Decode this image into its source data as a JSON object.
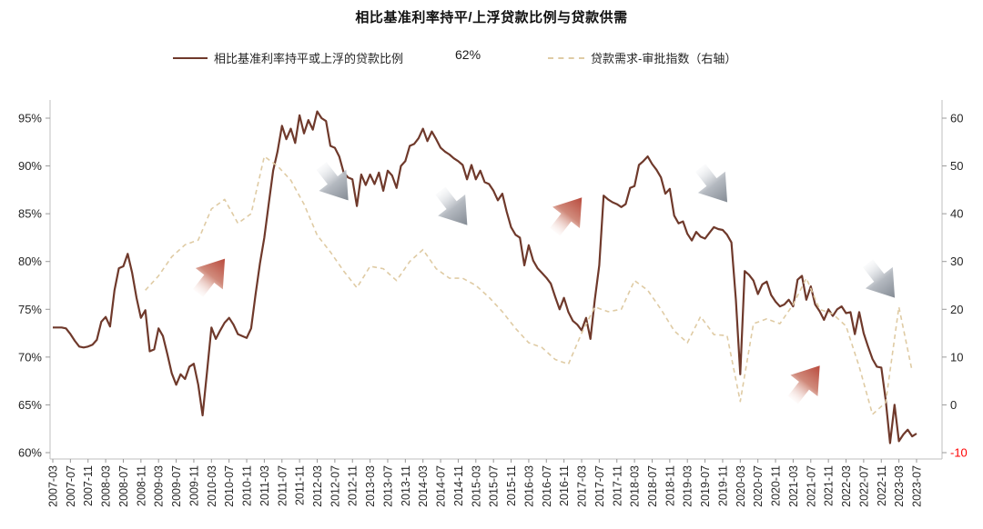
{
  "title": "相比基准利率持平/上浮贷款比例与贷款供需",
  "legend": {
    "series1_label": "相比基准利率持平或上浮的贷款比例",
    "latest_value_label": "62%",
    "series2_label": "贷款需求-审批指数（右轴）"
  },
  "colors": {
    "solid_line": "#6F392B",
    "dashed_line": "#DFCBA4",
    "axis_line": "#BFBFBF",
    "tick_mark": "#999999",
    "axis_text": "#262626",
    "negative_tick_text": "#FF0000",
    "arrow_red": "#B94A3D",
    "arrow_gray": "#848B94"
  },
  "chart_data": {
    "type": "line",
    "title": "相比基准利率持平/上浮贷款比例与贷款供需",
    "grid": false,
    "legend_position": "top",
    "left_axis": {
      "unit": "%",
      "min": 60,
      "max": 95,
      "tick_labels": [
        "60%",
        "65%",
        "70%",
        "75%",
        "80%",
        "85%",
        "90%",
        "95%"
      ]
    },
    "right_axis": {
      "min": -10,
      "max": 60,
      "tick_labels": [
        "-10",
        "0",
        "10",
        "20",
        "30",
        "40",
        "50",
        "60"
      ],
      "negative_label_red": "-10"
    },
    "x_axis": {
      "start": "2007-03",
      "end": "2023-07",
      "label_interval_months": 4,
      "tick_labels": [
        "2007-03",
        "2007-07",
        "2007-11",
        "2008-03",
        "2008-07",
        "2008-11",
        "2009-03",
        "2009-07",
        "2009-11",
        "2010-03",
        "2010-07",
        "2010-11",
        "2011-03",
        "2011-07",
        "2011-11",
        "2012-03",
        "2012-07",
        "2012-11",
        "2013-03",
        "2013-07",
        "2013-11",
        "2014-03",
        "2014-07",
        "2014-11",
        "2015-03",
        "2015-07",
        "2015-11",
        "2016-03",
        "2016-07",
        "2016-11",
        "2017-03",
        "2017-07",
        "2017-11",
        "2018-03",
        "2018-07",
        "2018-11",
        "2019-03",
        "2019-07",
        "2019-11",
        "2020-03",
        "2020-07",
        "2020-11",
        "2021-03",
        "2021-07",
        "2021-11",
        "2022-03",
        "2022-07",
        "2022-11",
        "2023-03",
        "2023-07"
      ]
    },
    "series": [
      {
        "name": "相比基准利率持平或上浮的贷款比例",
        "axis": "left",
        "style": "solid",
        "frequency": "monthly",
        "start": "2007-03",
        "step_months": 1,
        "unit": "%",
        "latest_label": "62%",
        "values": [
          73.1,
          73.1,
          73.1,
          73.0,
          72.4,
          71.7,
          71.1,
          71.0,
          71.1,
          71.3,
          71.8,
          73.7,
          74.2,
          73.2,
          77.0,
          79.3,
          79.5,
          80.8,
          78.8,
          76.2,
          74.1,
          74.9,
          70.6,
          70.8,
          73.0,
          72.2,
          70.3,
          68.3,
          67.1,
          68.2,
          67.7,
          69.0,
          69.3,
          67.1,
          63.9,
          68.5,
          73.1,
          71.9,
          72.8,
          73.6,
          74.1,
          73.4,
          72.4,
          72.2,
          72.0,
          73.0,
          76.5,
          79.8,
          82.5,
          86.0,
          89.5,
          91.5,
          94.2,
          92.8,
          93.9,
          92.4,
          95.3,
          93.4,
          94.8,
          93.8,
          95.7,
          95.0,
          94.7,
          92.1,
          91.9,
          91.0,
          89.3,
          88.8,
          88.6,
          85.8,
          89.1,
          88.0,
          89.1,
          88.1,
          89.3,
          87.4,
          89.5,
          89.0,
          87.7,
          90.0,
          90.5,
          92.1,
          92.3,
          92.9,
          93.9,
          92.6,
          93.6,
          92.8,
          91.9,
          91.5,
          91.2,
          90.8,
          90.5,
          90.1,
          88.6,
          90.1,
          88.6,
          89.5,
          88.3,
          88.1,
          87.4,
          86.4,
          87.1,
          85.2,
          83.6,
          82.8,
          82.5,
          79.6,
          81.7,
          80.1,
          79.3,
          78.8,
          78.3,
          77.7,
          76.3,
          75.0,
          76.2,
          74.7,
          73.8,
          73.4,
          72.8,
          74.1,
          71.9,
          76.0,
          79.6,
          86.9,
          86.5,
          86.2,
          86.0,
          85.7,
          86.0,
          87.7,
          87.9,
          90.1,
          90.5,
          91.0,
          90.2,
          89.6,
          88.8,
          87.1,
          87.6,
          84.8,
          84.0,
          84.2,
          82.9,
          82.2,
          83.1,
          82.6,
          82.4,
          83.0,
          83.6,
          83.4,
          83.3,
          82.8,
          82.0,
          76.0,
          68.2,
          79.0,
          78.6,
          78.0,
          76.6,
          77.6,
          77.9,
          76.5,
          75.8,
          75.3,
          75.5,
          76.0,
          75.3,
          78.1,
          78.5,
          76.0,
          77.4,
          75.5,
          74.8,
          73.9,
          75.0,
          74.3,
          75.0,
          75.3,
          74.6,
          74.7,
          72.4,
          74.7,
          72.5,
          71.1,
          69.8,
          69.0,
          68.9,
          65.5,
          61.0,
          65.0,
          61.2,
          61.9,
          62.4,
          61.7,
          62.0
        ]
      },
      {
        "name": "贷款需求-审批指数（右轴）",
        "axis": "right",
        "style": "dashed",
        "frequency": "quarterly",
        "start": "2008-12",
        "step_months": 3,
        "values": [
          24,
          27,
          31,
          33.5,
          34.5,
          41,
          43,
          38,
          40,
          52,
          50,
          47,
          42,
          35.5,
          32,
          28,
          24.5,
          29,
          28.5,
          26,
          30,
          32.5,
          28.5,
          26.5,
          26.5,
          25,
          22.5,
          19.5,
          16,
          13,
          12,
          9.5,
          8.5,
          15,
          20.5,
          19.5,
          20,
          26,
          24,
          20,
          15.5,
          13,
          18.5,
          14.7,
          14.5,
          0.7,
          17,
          18,
          17,
          21,
          26.5,
          20,
          19,
          16.5,
          8,
          -2,
          0.5,
          20.5,
          7
        ]
      }
    ],
    "annotations": {
      "arrows": [
        {
          "direction": "up",
          "month": "2010-03",
          "value": 78.5
        },
        {
          "direction": "down",
          "month": "2012-07",
          "value": 88.2
        },
        {
          "direction": "down",
          "month": "2014-10",
          "value": 85.6
        },
        {
          "direction": "up",
          "month": "2016-12",
          "value": 84.9
        },
        {
          "direction": "down",
          "month": "2019-09",
          "value": 88.0
        },
        {
          "direction": "up",
          "month": "2021-06",
          "value": 67.3
        },
        {
          "direction": "down",
          "month": "2022-11",
          "value": 78.0
        }
      ]
    }
  }
}
